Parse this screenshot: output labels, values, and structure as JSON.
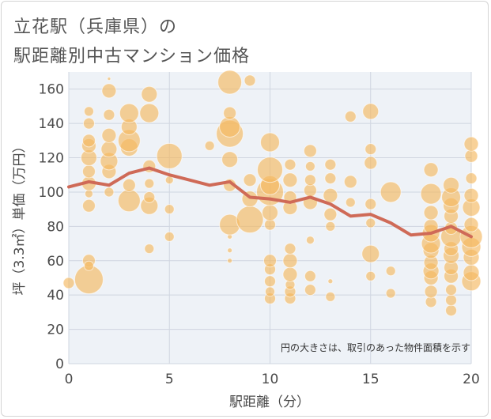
{
  "chart_data": {
    "type": "scatter",
    "title_lines": [
      "立花駅（兵庫県）の",
      "駅距離別中古マンション価格"
    ],
    "xlabel": "駅距離（分）",
    "ylabel": "坪（3.3㎡）単価（万円）",
    "xlim": [
      0,
      20
    ],
    "ylim": [
      0,
      170
    ],
    "xticks": [
      0,
      5,
      10,
      15,
      20
    ],
    "yticks": [
      0,
      20,
      40,
      60,
      80,
      100,
      120,
      140,
      160
    ],
    "annotation": "円の大きさは、取引のあった物件面積を示す",
    "grid": true,
    "colors": {
      "bubble": "#f5b961",
      "line": "#cf6a57",
      "grid": "#cfd5e0",
      "axis_text": "#4a4a4a"
    },
    "line_series": {
      "x": [
        0,
        1,
        2,
        3,
        4,
        5,
        6,
        7,
        8,
        9,
        10,
        11,
        12,
        13,
        14,
        15,
        16,
        17,
        18,
        19,
        20
      ],
      "y": [
        103,
        106,
        104,
        111,
        114,
        110,
        107,
        104,
        106,
        97,
        96,
        94,
        97,
        93,
        86,
        87,
        82,
        75,
        76,
        80,
        74
      ]
    },
    "bubbles": [
      {
        "x": 0,
        "y": 47,
        "s": 7
      },
      {
        "x": 1,
        "y": 49,
        "s": 18
      },
      {
        "x": 1,
        "y": 60,
        "s": 8
      },
      {
        "x": 1,
        "y": 57,
        "s": 6
      },
      {
        "x": 1,
        "y": 92,
        "s": 8
      },
      {
        "x": 1,
        "y": 99,
        "s": 5
      },
      {
        "x": 1,
        "y": 105,
        "s": 9
      },
      {
        "x": 1,
        "y": 112,
        "s": 8
      },
      {
        "x": 1,
        "y": 120,
        "s": 10
      },
      {
        "x": 1,
        "y": 127,
        "s": 9
      },
      {
        "x": 1,
        "y": 130,
        "s": 8
      },
      {
        "x": 1,
        "y": 140,
        "s": 7
      },
      {
        "x": 1,
        "y": 147,
        "s": 6
      },
      {
        "x": 2,
        "y": 100,
        "s": 6
      },
      {
        "x": 2,
        "y": 112,
        "s": 9
      },
      {
        "x": 2,
        "y": 118,
        "s": 11
      },
      {
        "x": 2,
        "y": 125,
        "s": 10
      },
      {
        "x": 2,
        "y": 133,
        "s": 9
      },
      {
        "x": 2,
        "y": 145,
        "s": 7
      },
      {
        "x": 2,
        "y": 159,
        "s": 9
      },
      {
        "x": 2,
        "y": 166,
        "s": 2
      },
      {
        "x": 3,
        "y": 95,
        "s": 14
      },
      {
        "x": 3,
        "y": 104,
        "s": 8
      },
      {
        "x": 3,
        "y": 126,
        "s": 11
      },
      {
        "x": 3,
        "y": 130,
        "s": 14
      },
      {
        "x": 3,
        "y": 138,
        "s": 10
      },
      {
        "x": 3,
        "y": 146,
        "s": 12
      },
      {
        "x": 4,
        "y": 67,
        "s": 6
      },
      {
        "x": 4,
        "y": 92,
        "s": 11
      },
      {
        "x": 4,
        "y": 97,
        "s": 7
      },
      {
        "x": 4,
        "y": 105,
        "s": 6
      },
      {
        "x": 4,
        "y": 115,
        "s": 8
      },
      {
        "x": 4,
        "y": 146,
        "s": 12
      },
      {
        "x": 4,
        "y": 157,
        "s": 10
      },
      {
        "x": 5,
        "y": 74,
        "s": 6
      },
      {
        "x": 5,
        "y": 90,
        "s": 6
      },
      {
        "x": 5,
        "y": 107,
        "s": 5
      },
      {
        "x": 5,
        "y": 121,
        "s": 16
      },
      {
        "x": 7,
        "y": 127,
        "s": 6
      },
      {
        "x": 8,
        "y": 60,
        "s": 3
      },
      {
        "x": 8,
        "y": 66,
        "s": 3
      },
      {
        "x": 8,
        "y": 74,
        "s": 3
      },
      {
        "x": 8,
        "y": 81,
        "s": 13
      },
      {
        "x": 8,
        "y": 104,
        "s": 8
      },
      {
        "x": 8,
        "y": 119,
        "s": 10
      },
      {
        "x": 8,
        "y": 134,
        "s": 17
      },
      {
        "x": 8,
        "y": 138,
        "s": 13
      },
      {
        "x": 8,
        "y": 146,
        "s": 8
      },
      {
        "x": 8,
        "y": 164,
        "s": 15
      },
      {
        "x": 9,
        "y": 84,
        "s": 17
      },
      {
        "x": 9,
        "y": 96,
        "s": 10
      },
      {
        "x": 9,
        "y": 107,
        "s": 8
      },
      {
        "x": 9,
        "y": 165,
        "s": 7
      },
      {
        "x": 10,
        "y": 38,
        "s": 7
      },
      {
        "x": 10,
        "y": 42,
        "s": 6
      },
      {
        "x": 10,
        "y": 48,
        "s": 7
      },
      {
        "x": 10,
        "y": 55,
        "s": 7
      },
      {
        "x": 10,
        "y": 60,
        "s": 8
      },
      {
        "x": 10,
        "y": 81,
        "s": 7
      },
      {
        "x": 10,
        "y": 88,
        "s": 10
      },
      {
        "x": 10,
        "y": 100,
        "s": 17
      },
      {
        "x": 10,
        "y": 104,
        "s": 12
      },
      {
        "x": 10,
        "y": 113,
        "s": 16
      },
      {
        "x": 10,
        "y": 129,
        "s": 12
      },
      {
        "x": 11,
        "y": 38,
        "s": 7
      },
      {
        "x": 11,
        "y": 42,
        "s": 7
      },
      {
        "x": 11,
        "y": 46,
        "s": 6
      },
      {
        "x": 11,
        "y": 52,
        "s": 9
      },
      {
        "x": 11,
        "y": 60,
        "s": 9
      },
      {
        "x": 11,
        "y": 67,
        "s": 7
      },
      {
        "x": 11,
        "y": 91,
        "s": 9
      },
      {
        "x": 11,
        "y": 97,
        "s": 8
      },
      {
        "x": 11,
        "y": 107,
        "s": 9
      },
      {
        "x": 11,
        "y": 116,
        "s": 7
      },
      {
        "x": 12,
        "y": 43,
        "s": 7
      },
      {
        "x": 12,
        "y": 51,
        "s": 7
      },
      {
        "x": 12,
        "y": 72,
        "s": 5
      },
      {
        "x": 12,
        "y": 94,
        "s": 9
      },
      {
        "x": 12,
        "y": 101,
        "s": 8
      },
      {
        "x": 12,
        "y": 107,
        "s": 7
      },
      {
        "x": 12,
        "y": 115,
        "s": 6
      },
      {
        "x": 12,
        "y": 124,
        "s": 8
      },
      {
        "x": 13,
        "y": 39,
        "s": 6
      },
      {
        "x": 13,
        "y": 48,
        "s": 3
      },
      {
        "x": 13,
        "y": 80,
        "s": 6
      },
      {
        "x": 13,
        "y": 87,
        "s": 8
      },
      {
        "x": 13,
        "y": 98,
        "s": 9
      },
      {
        "x": 13,
        "y": 108,
        "s": 7
      },
      {
        "x": 13,
        "y": 116,
        "s": 7
      },
      {
        "x": 14,
        "y": 94,
        "s": 6
      },
      {
        "x": 14,
        "y": 106,
        "s": 8
      },
      {
        "x": 14,
        "y": 144,
        "s": 7
      },
      {
        "x": 15,
        "y": 51,
        "s": 6
      },
      {
        "x": 15,
        "y": 64,
        "s": 11
      },
      {
        "x": 15,
        "y": 82,
        "s": 6
      },
      {
        "x": 15,
        "y": 93,
        "s": 7
      },
      {
        "x": 15,
        "y": 117,
        "s": 8
      },
      {
        "x": 15,
        "y": 125,
        "s": 7
      },
      {
        "x": 15,
        "y": 147,
        "s": 10
      },
      {
        "x": 16,
        "y": 41,
        "s": 6
      },
      {
        "x": 16,
        "y": 54,
        "s": 6
      },
      {
        "x": 16,
        "y": 100,
        "s": 13
      },
      {
        "x": 18,
        "y": 36,
        "s": 7
      },
      {
        "x": 18,
        "y": 42,
        "s": 8
      },
      {
        "x": 18,
        "y": 50,
        "s": 9
      },
      {
        "x": 18,
        "y": 54,
        "s": 10
      },
      {
        "x": 18,
        "y": 59,
        "s": 9
      },
      {
        "x": 18,
        "y": 66,
        "s": 10
      },
      {
        "x": 18,
        "y": 70,
        "s": 12
      },
      {
        "x": 18,
        "y": 76,
        "s": 11
      },
      {
        "x": 18,
        "y": 80,
        "s": 9
      },
      {
        "x": 18,
        "y": 88,
        "s": 9
      },
      {
        "x": 18,
        "y": 99,
        "s": 13
      },
      {
        "x": 18,
        "y": 113,
        "s": 9
      },
      {
        "x": 19,
        "y": 31,
        "s": 7
      },
      {
        "x": 19,
        "y": 37,
        "s": 7
      },
      {
        "x": 19,
        "y": 43,
        "s": 7
      },
      {
        "x": 19,
        "y": 51,
        "s": 9
      },
      {
        "x": 19,
        "y": 56,
        "s": 9
      },
      {
        "x": 19,
        "y": 63,
        "s": 10
      },
      {
        "x": 19,
        "y": 67,
        "s": 9
      },
      {
        "x": 19,
        "y": 74,
        "s": 13
      },
      {
        "x": 19,
        "y": 79,
        "s": 8
      },
      {
        "x": 19,
        "y": 86,
        "s": 9
      },
      {
        "x": 19,
        "y": 92,
        "s": 10
      },
      {
        "x": 19,
        "y": 97,
        "s": 12
      },
      {
        "x": 19,
        "y": 104,
        "s": 10
      },
      {
        "x": 20,
        "y": 48,
        "s": 12
      },
      {
        "x": 20,
        "y": 53,
        "s": 10
      },
      {
        "x": 20,
        "y": 62,
        "s": 10
      },
      {
        "x": 20,
        "y": 68,
        "s": 12
      },
      {
        "x": 20,
        "y": 74,
        "s": 14
      },
      {
        "x": 20,
        "y": 81,
        "s": 9
      },
      {
        "x": 20,
        "y": 91,
        "s": 11
      },
      {
        "x": 20,
        "y": 98,
        "s": 9
      },
      {
        "x": 20,
        "y": 108,
        "s": 7
      },
      {
        "x": 20,
        "y": 121,
        "s": 8
      },
      {
        "x": 20,
        "y": 128,
        "s": 9
      }
    ]
  }
}
